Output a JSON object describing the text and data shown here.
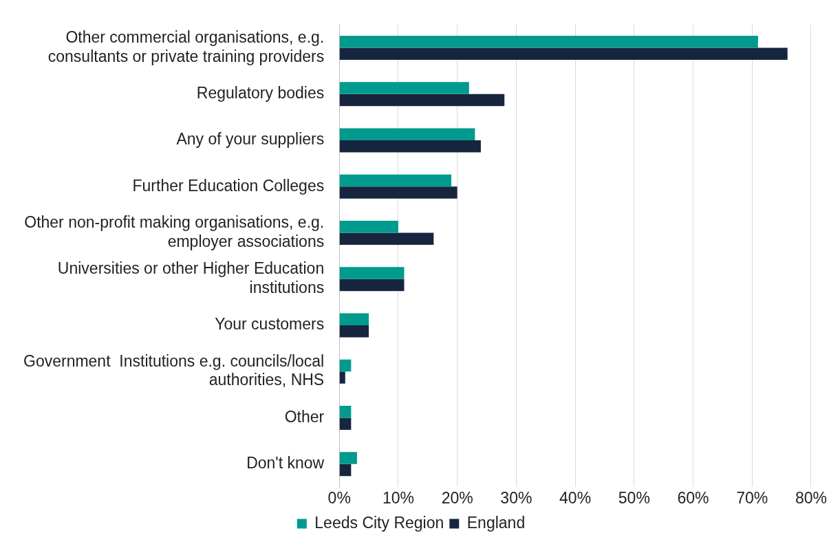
{
  "chart_data": {
    "type": "bar",
    "orientation": "horizontal",
    "categories": [
      "Other commercial organisations, e.g. consultants or private training providers",
      "Regulatory bodies",
      "Any of your suppliers",
      "Further Education Colleges",
      "Other non-profit making organisations, e.g. employer associations",
      "Universities or other Higher Education institutions",
      "Your customers",
      "Government  Institutions e.g. councils/local authorities, NHS",
      "Other",
      "Don't know"
    ],
    "series": [
      {
        "name": "Leeds City Region",
        "color": "#009b8e",
        "values": [
          71,
          22,
          23,
          19,
          10,
          11,
          5,
          2,
          2,
          3
        ]
      },
      {
        "name": "England",
        "color": "#18253f",
        "values": [
          76,
          28,
          24,
          20,
          16,
          11,
          5,
          1,
          2,
          2
        ]
      }
    ],
    "xlim": [
      0,
      80
    ],
    "xticks": [
      {
        "value": 0,
        "label": "0%"
      },
      {
        "value": 10,
        "label": "10%"
      },
      {
        "value": 20,
        "label": "20%"
      },
      {
        "value": 30,
        "label": "30%"
      },
      {
        "value": 40,
        "label": "40%"
      },
      {
        "value": 50,
        "label": "50%"
      },
      {
        "value": 60,
        "label": "60%"
      },
      {
        "value": 70,
        "label": "70%"
      },
      {
        "value": 80,
        "label": "80%"
      }
    ],
    "grid": "x",
    "legend": "bottom"
  }
}
